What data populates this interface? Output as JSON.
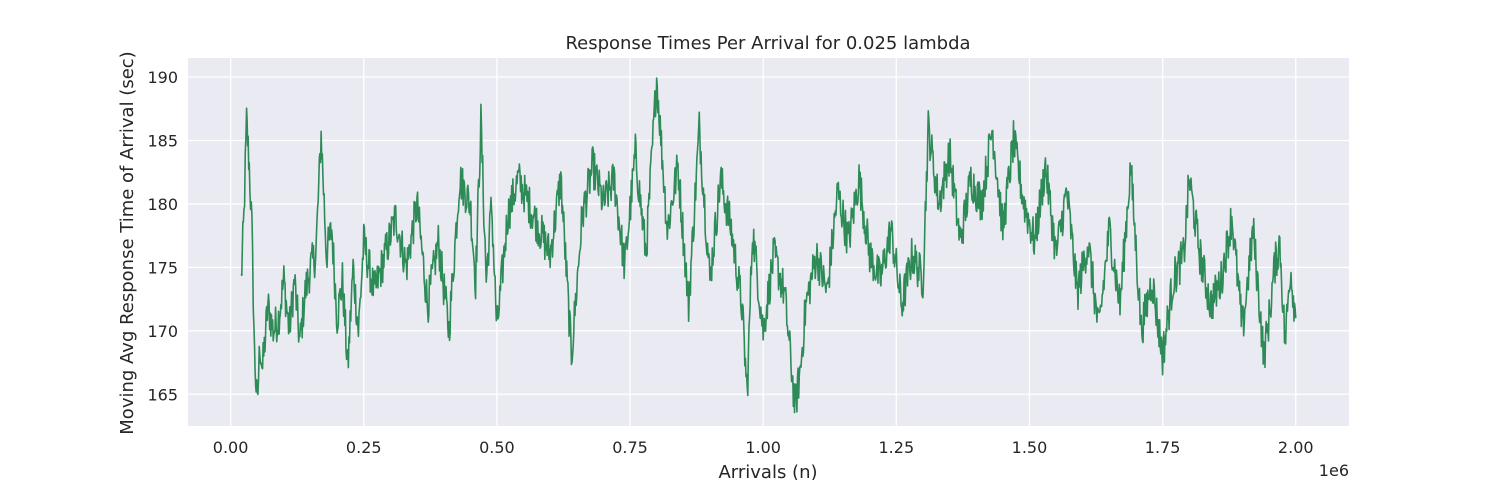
{
  "chart_data": {
    "type": "line",
    "title": "Response Times Per Arrival for 0.025 lambda",
    "xlabel": "Arrivals (n)",
    "ylabel": "Moving Avg Response Time of Arrival (sec)",
    "x_offset_label": "1e6",
    "xlim": [
      -0.08,
      2.1
    ],
    "ylim": [
      162.5,
      191.5
    ],
    "x_ticks": [
      0.0,
      0.25,
      0.5,
      0.75,
      1.0,
      1.25,
      1.5,
      1.75,
      2.0
    ],
    "x_tick_labels": [
      "0.00",
      "0.25",
      "0.50",
      "0.75",
      "1.00",
      "1.25",
      "1.50",
      "1.75",
      "2.00"
    ],
    "y_ticks": [
      165,
      170,
      175,
      180,
      185,
      190
    ],
    "y_tick_labels": [
      "165",
      "170",
      "175",
      "180",
      "185",
      "190"
    ],
    "grid": true,
    "background": "#eaeaf2",
    "series": [
      {
        "color": "#2e8b57",
        "x": [
          0.02,
          0.025,
          0.03,
          0.035,
          0.04,
          0.045,
          0.05,
          0.055,
          0.06,
          0.07,
          0.08,
          0.09,
          0.1,
          0.11,
          0.12,
          0.13,
          0.14,
          0.15,
          0.16,
          0.17,
          0.18,
          0.19,
          0.2,
          0.21,
          0.22,
          0.23,
          0.24,
          0.25,
          0.27,
          0.29,
          0.31,
          0.33,
          0.35,
          0.37,
          0.39,
          0.41,
          0.43,
          0.45,
          0.46,
          0.47,
          0.48,
          0.49,
          0.5,
          0.52,
          0.54,
          0.56,
          0.58,
          0.6,
          0.62,
          0.64,
          0.66,
          0.68,
          0.7,
          0.72,
          0.74,
          0.76,
          0.78,
          0.8,
          0.82,
          0.84,
          0.86,
          0.88,
          0.9,
          0.92,
          0.94,
          0.96,
          0.97,
          0.98,
          1.0,
          1.02,
          1.04,
          1.06,
          1.07,
          1.08,
          1.1,
          1.12,
          1.14,
          1.16,
          1.18,
          1.2,
          1.22,
          1.24,
          1.26,
          1.28,
          1.3,
          1.31,
          1.33,
          1.35,
          1.37,
          1.39,
          1.41,
          1.43,
          1.45,
          1.47,
          1.49,
          1.51,
          1.53,
          1.55,
          1.57,
          1.59,
          1.61,
          1.63,
          1.65,
          1.67,
          1.69,
          1.71,
          1.73,
          1.75,
          1.77,
          1.79,
          1.8,
          1.82,
          1.84,
          1.86,
          1.88,
          1.9,
          1.92,
          1.94,
          1.95,
          1.96,
          1.97,
          1.98,
          1.99,
          2.0
        ],
        "y": [
          174.0,
          179.0,
          186.5,
          183.0,
          178.0,
          168.0,
          164.0,
          169.0,
          167.0,
          172.0,
          170.0,
          171.0,
          174.0,
          170.0,
          174.0,
          169.0,
          173.0,
          175.0,
          176.0,
          185.5,
          176.0,
          178.0,
          171.0,
          174.0,
          167.0,
          175.0,
          170.0,
          177.0,
          173.0,
          176.0,
          179.0,
          175.0,
          180.0,
          172.0,
          177.0,
          170.0,
          182.0,
          180.0,
          174.0,
          186.5,
          174.0,
          180.0,
          170.0,
          179.0,
          182.0,
          180.0,
          178.0,
          176.0,
          182.0,
          168.0,
          179.0,
          183.0,
          180.0,
          182.0,
          175.0,
          184.0,
          176.0,
          190.0,
          178.0,
          183.0,
          172.0,
          186.0,
          174.0,
          182.0,
          178.0,
          172.0,
          165.0,
          178.0,
          170.0,
          176.0,
          173.0,
          164.0,
          167.0,
          172.0,
          176.0,
          173.0,
          181.0,
          177.0,
          182.0,
          176.0,
          174.0,
          178.0,
          172.0,
          176.0,
          174.0,
          186.0,
          180.0,
          184.0,
          177.0,
          182.0,
          180.0,
          186.0,
          178.0,
          185.0,
          180.0,
          177.0,
          183.0,
          176.0,
          181.0,
          173.0,
          177.0,
          170.0,
          178.0,
          172.0,
          183.0,
          170.0,
          174.0,
          168.0,
          174.0,
          176.0,
          182.0,
          176.0,
          172.0,
          174.0,
          179.0,
          170.0,
          178.0,
          168.0,
          171.0,
          175.0,
          177.0,
          169.0,
          175.0,
          171.0
        ]
      }
    ]
  }
}
